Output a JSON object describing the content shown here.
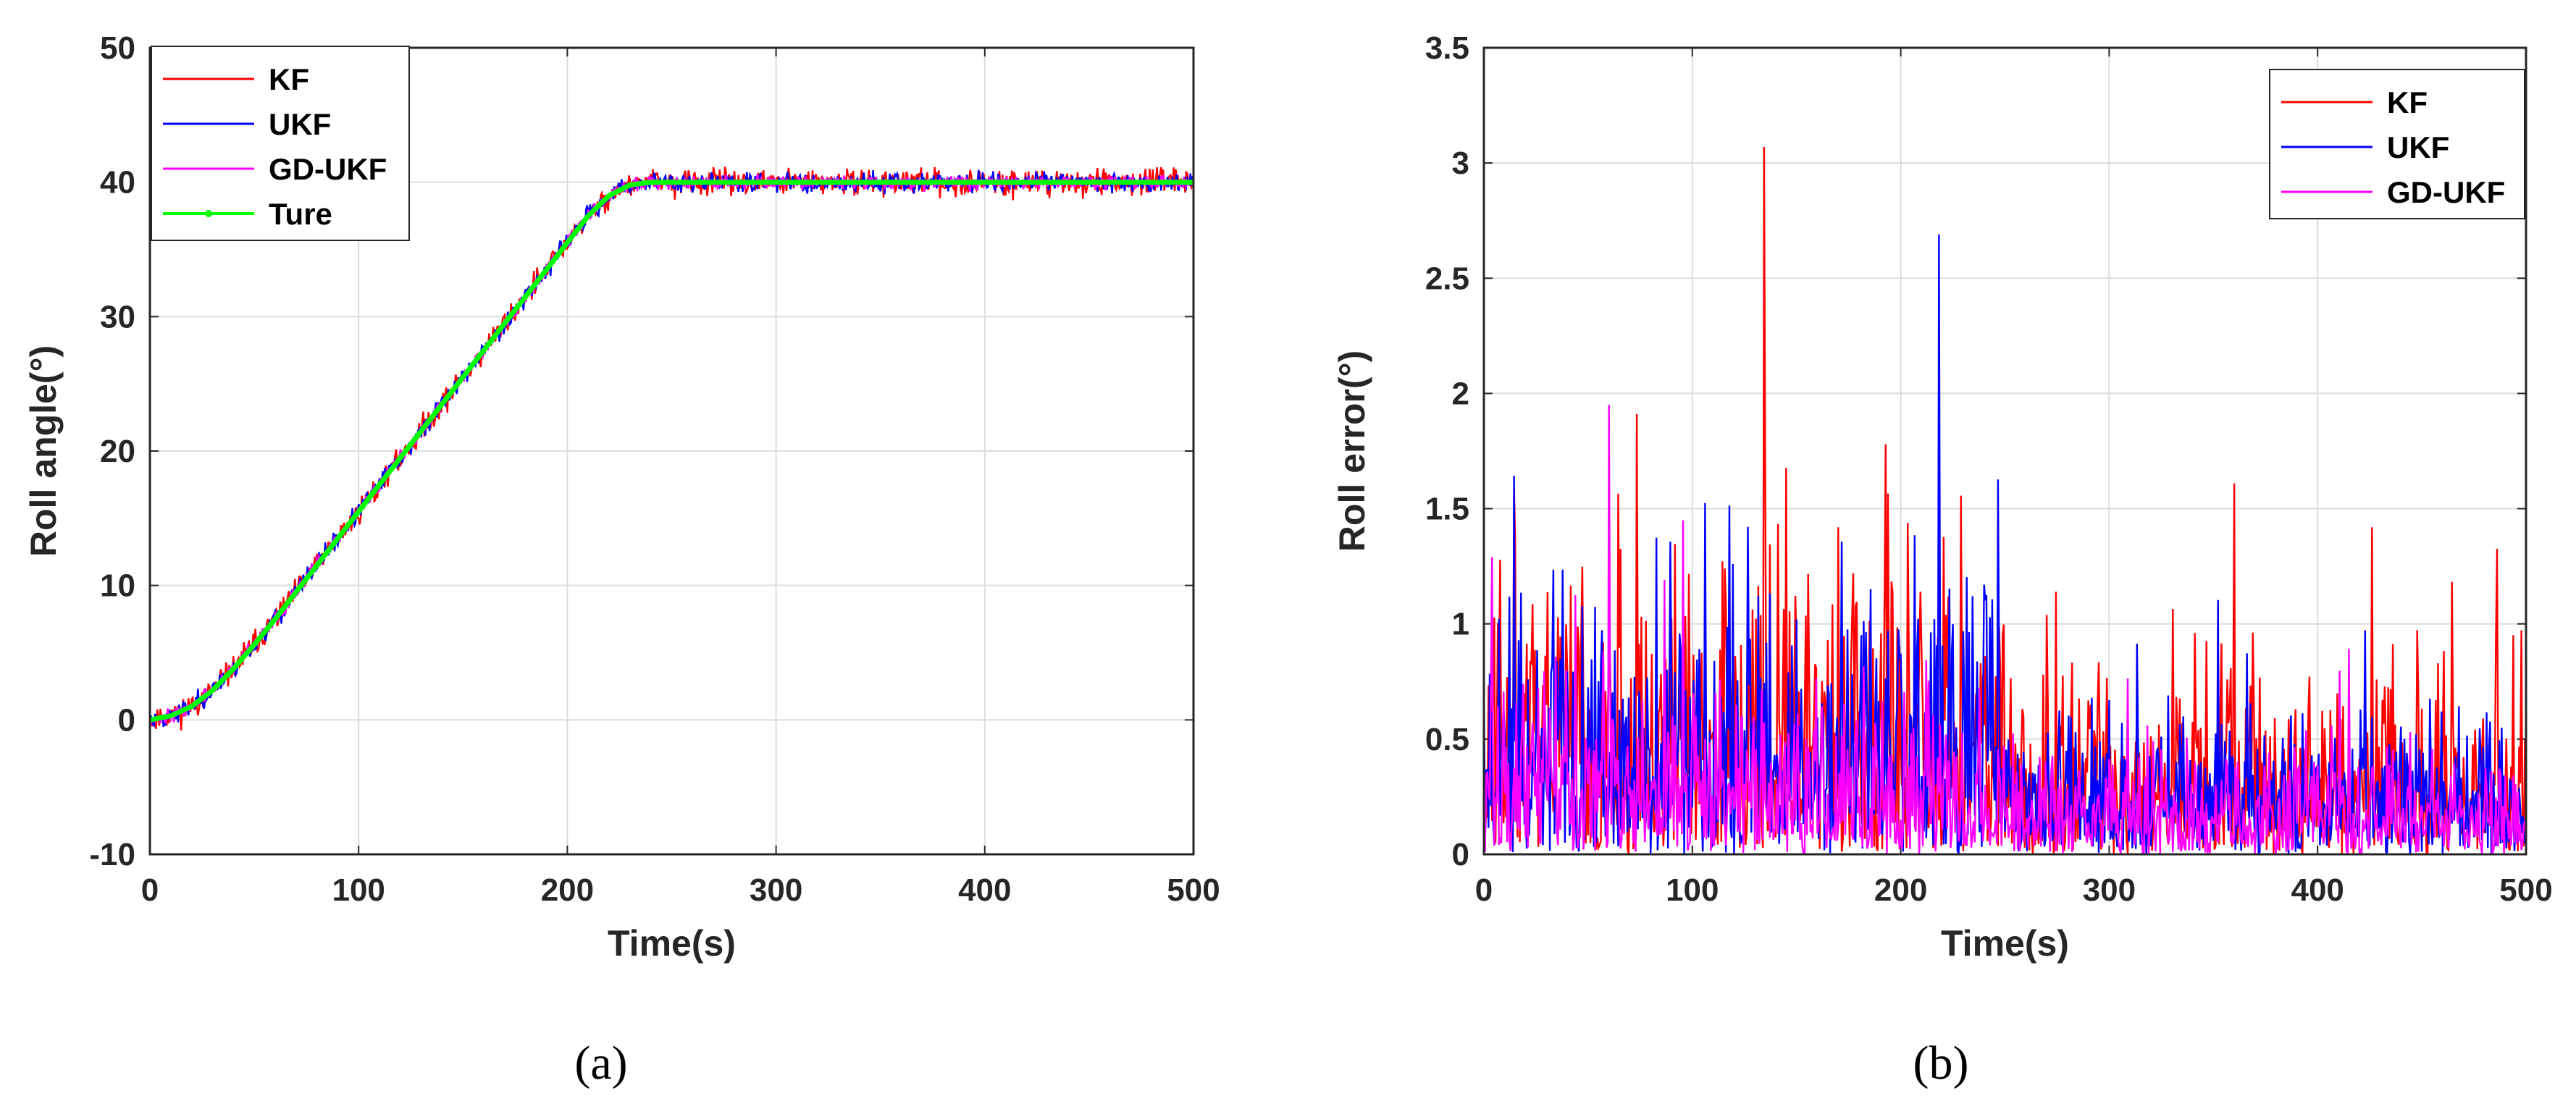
{
  "figure": {
    "captions": [
      "(a)",
      "(b)"
    ]
  },
  "colors": {
    "KF": "#ff0000",
    "UKF": "#0000ff",
    "GD-UKF": "#ff00ff",
    "Ture": "#00ff00",
    "grid": "#dcdcdc",
    "axis": "#262626"
  },
  "chart_data": [
    {
      "type": "line",
      "caption": "(a)",
      "xlabel": "Time(s)",
      "ylabel": "Roll angle(°)",
      "xlim": [
        0,
        500
      ],
      "ylim": [
        -10,
        50
      ],
      "xticks": [
        0,
        100,
        200,
        300,
        400,
        500
      ],
      "yticks": [
        -10,
        0,
        10,
        20,
        30,
        40,
        50
      ],
      "grid": true,
      "legend": {
        "position": "top-left",
        "entries": [
          "KF",
          "UKF",
          "GD-UKF",
          "Ture"
        ]
      },
      "true_profile": {
        "description_of_shape": "smooth ramp",
        "x": [
          0,
          10,
          20,
          30,
          40,
          50,
          60,
          70,
          80,
          90,
          100,
          110,
          120,
          130,
          140,
          150,
          160,
          170,
          180,
          190,
          200,
          210,
          220,
          230,
          240,
          250,
          300,
          350,
          400,
          450,
          500
        ],
        "y": [
          0,
          0.3,
          1.0,
          2.2,
          3.8,
          5.6,
          7.5,
          9.5,
          11.5,
          13.5,
          15.5,
          17.5,
          19.5,
          21.5,
          23.5,
          25.5,
          27.5,
          29.5,
          31.5,
          33.5,
          35.5,
          37.5,
          39.0,
          39.8,
          40.0,
          40.0,
          40.0,
          40.0,
          40.0,
          40.0,
          40.0
        ]
      },
      "series": [
        {
          "name": "KF",
          "noise_amplitude": 1.2
        },
        {
          "name": "UKF",
          "noise_amplitude": 0.9
        },
        {
          "name": "GD-UKF",
          "noise_amplitude": 0.6
        },
        {
          "name": "Ture",
          "noise_amplitude": 0
        }
      ]
    },
    {
      "type": "line",
      "caption": "(b)",
      "xlabel": "Time(s)",
      "ylabel": "Roll error(°)",
      "xlim": [
        0,
        500
      ],
      "ylim": [
        0,
        3.5
      ],
      "xticks": [
        0,
        100,
        200,
        300,
        400,
        500
      ],
      "yticks": [
        0,
        0.5,
        1,
        1.5,
        2,
        2.5,
        3,
        3.5
      ],
      "grid": true,
      "legend": {
        "position": "top-right",
        "entries": [
          "KF",
          "UKF",
          "GD-UKF"
        ]
      },
      "series": [
        {
          "name": "KF",
          "typical_level_0_250": 1.0,
          "typical_level_250_500": 0.6,
          "peak": 3.07
        },
        {
          "name": "UKF",
          "typical_level_0_250": 0.9,
          "typical_level_250_500": 0.45,
          "peak": 2.69
        },
        {
          "name": "GD-UKF",
          "typical_level_0_250": 0.55,
          "typical_level_250_500": 0.35,
          "peak": 1.95
        }
      ]
    }
  ]
}
